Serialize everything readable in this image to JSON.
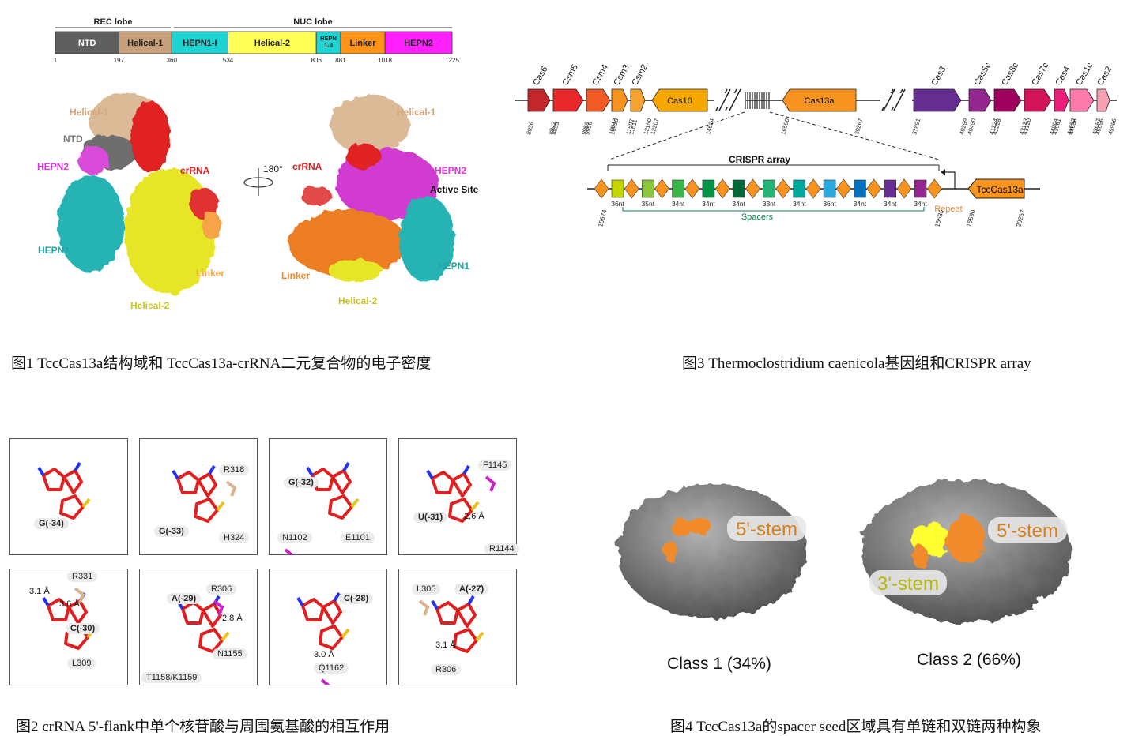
{
  "fig1": {
    "lobes": {
      "rec": "REC lobe",
      "nuc": "NUC lobe"
    },
    "domains": [
      {
        "label": "NTD",
        "color": "#5f5f5f",
        "text_color": "#ffffff",
        "start": 1,
        "end": 197
      },
      {
        "label": "Helical-1",
        "color": "#c8a07c",
        "text_color": "#222222",
        "start": 197,
        "end": 360
      },
      {
        "label": "HEPN1-I",
        "color": "#1fd3d3",
        "text_color": "#222222",
        "start": 360,
        "end": 534
      },
      {
        "label": "Helical-2",
        "color": "#ffff55",
        "text_color": "#222222",
        "start": 534,
        "end": 806
      },
      {
        "label": "HEPN 1-II",
        "color": "#1fd3d3",
        "text_color": "#222222",
        "start": 806,
        "end": 881
      },
      {
        "label": "Linker",
        "color": "#ff9418",
        "text_color": "#222222",
        "start": 881,
        "end": 1018
      },
      {
        "label": "HEPN2",
        "color": "#ff22ff",
        "text_color": "#222222",
        "start": 1018,
        "end": 1225
      }
    ],
    "ticks": [
      "1",
      "197",
      "360",
      "534",
      "806",
      "881",
      "1018",
      "1225"
    ],
    "left_labels": {
      "helical1": "Helical-1",
      "ntd": "NTD",
      "hepn2": "HEPN2",
      "crrna": "crRNA",
      "hepn1": "HEPN1",
      "linker": "Linker",
      "helical2": "Helical-2"
    },
    "rotation": "180°",
    "right_labels": {
      "helical1": "Helical-1",
      "crrna": "crRNA",
      "hepn2": "HEPN2",
      "active": "Active Site",
      "linker": "Linker",
      "hepn1": "HEPN1",
      "helical2": "Helical-2"
    },
    "caption": "图1  TccCas13a结构域和 TccCas13a-crRNA二元复合物的电子密度"
  },
  "fig3": {
    "genes_left": [
      {
        "name": "Cas6",
        "color": "#c1272d",
        "s": "8036",
        "e": "8842"
      },
      {
        "name": "Csm5",
        "color": "#e8282b",
        "s": "8883",
        "e": "9959"
      },
      {
        "name": "Csm4",
        "color": "#f15a24",
        "s": "9956",
        "e": "10942"
      },
      {
        "name": "Csm3",
        "color": "#f7931e",
        "s": "10923",
        "e": "11597"
      },
      {
        "name": "Csm2",
        "color": "#f7a12e",
        "s": "11611",
        "e": "12150"
      }
    ],
    "cas10": {
      "name": "Cas10",
      "color": "#f7a800",
      "s": "12207",
      "e": "14624"
    },
    "cas13a": {
      "name": "Cas13a",
      "color": "#f7931e",
      "s": "16590",
      "e": "20267"
    },
    "genes_right": [
      {
        "name": "Cas3",
        "color": "#662d91",
        "s": "37891",
        "e": "40299"
      },
      {
        "name": "Cas5c",
        "color": "#93278f",
        "s": "40490",
        "e": "41224"
      },
      {
        "name": "Cas8c",
        "color": "#9e005d",
        "s": "41228",
        "e": "43123"
      },
      {
        "name": "Cas7c",
        "color": "#d4145a",
        "s": "43120",
        "e": "44004"
      },
      {
        "name": "Cas4",
        "color": "#ed1e79",
        "s": "43981",
        "e": "44653"
      },
      {
        "name": "Cas1c",
        "color": "#ff7bac",
        "s": "44656",
        "e": "45687"
      },
      {
        "name": "Cas2",
        "color": "#f7a0b4",
        "s": "45696",
        "e": "45986"
      }
    ],
    "array_title": "CRISPR array",
    "spacers": [
      {
        "len": "36nt",
        "color": "#c4d600"
      },
      {
        "len": "35nt",
        "color": "#8cc63f"
      },
      {
        "len": "34nt",
        "color": "#39b54a"
      },
      {
        "len": "34nt",
        "color": "#009245"
      },
      {
        "len": "34nt",
        "color": "#006837"
      },
      {
        "len": "33nt",
        "color": "#22b573"
      },
      {
        "len": "34nt",
        "color": "#00a99d"
      },
      {
        "len": "36nt",
        "color": "#29abe2"
      },
      {
        "len": "34nt",
        "color": "#0071bc"
      },
      {
        "len": "34nt",
        "color": "#662d91"
      },
      {
        "len": "34nt",
        "color": "#93278f"
      }
    ],
    "array_start": "15674",
    "array_end": "16535",
    "repeat_label": "Repeat",
    "spacers_label": "Spacers",
    "tcc": {
      "name": "TccCas13a",
      "s": "16590",
      "e": "20267"
    },
    "caption": "图3 Thermoclostridium caenicola基因组和CRISPR array"
  },
  "fig2": {
    "boxes": [
      {
        "nt": "G(-34)",
        "tags": []
      },
      {
        "nt": "G(-33)",
        "tags": [
          "R318",
          "H324"
        ]
      },
      {
        "nt": "G(-32)",
        "tags": [
          "N1102",
          "E1101"
        ]
      },
      {
        "nt": "U(-31)",
        "tags": [
          "F1145",
          "R1144"
        ],
        "dist": [
          "2.6 Å"
        ]
      },
      {
        "nt": "C(-30)",
        "tags": [
          "R331",
          "L309"
        ],
        "dist": [
          "3.1 Å",
          "3.6 Å"
        ]
      },
      {
        "nt": "A(-29)",
        "tags": [
          "R306",
          "N1155",
          "T1158/K1159"
        ],
        "dist": [
          "2.8 Å"
        ]
      },
      {
        "nt": "C(-28)",
        "tags": [
          "Q1162"
        ],
        "dist": [
          "3.0 Å"
        ]
      },
      {
        "nt": "A(-27)",
        "tags": [
          "L305",
          "R306"
        ],
        "dist": [
          "3.1 Å"
        ]
      }
    ],
    "caption": "图2 crRNA 5'-flank中单个核苷酸与周围氨基酸的相互作用"
  },
  "fig4": {
    "class1": {
      "label": "Class 1 (34%)",
      "stem5": "5'-stem"
    },
    "class2": {
      "label": "Class 2 (66%)",
      "stem5": "5'-stem",
      "stem3": "3'-stem"
    },
    "caption": "图4  TccCas13a的spacer seed区域具有单链和双链两种构象"
  }
}
